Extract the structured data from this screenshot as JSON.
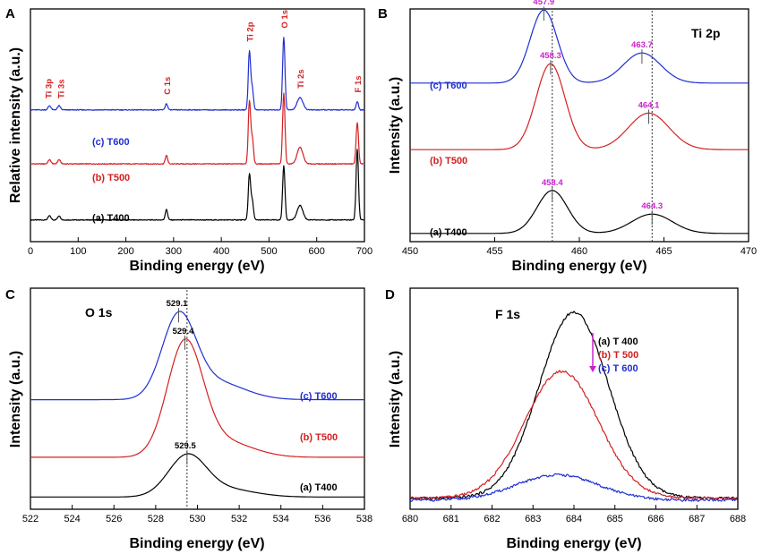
{
  "chart_data": [
    {
      "panel_label": "A",
      "type": "line",
      "title": "",
      "xlabel": "Binding energy (eV)",
      "ylabel": "Relative intensity (a.u.)",
      "xlim": [
        0,
        700
      ],
      "xticks": [
        "0",
        "100",
        "200",
        "300",
        "400",
        "500",
        "600",
        "700"
      ],
      "series": [
        {
          "name": "(a) T400",
          "color": "#000000",
          "baseline": 0.07,
          "peaks": [
            [
              40,
              0.02,
              3
            ],
            [
              60,
              0.02,
              3
            ],
            [
              285,
              0.05,
              2.5
            ],
            [
              459,
              0.22,
              2.5
            ],
            [
              465,
              0.09,
              2.5
            ],
            [
              531,
              0.26,
              2.5
            ],
            [
              565,
              0.07,
              6
            ],
            [
              685,
              0.34,
              2.5
            ]
          ]
        },
        {
          "name": "(b) T500",
          "color": "#d42020",
          "baseline": 0.34,
          "peaks": [
            [
              40,
              0.02,
              3
            ],
            [
              60,
              0.02,
              3
            ],
            [
              285,
              0.04,
              2.5
            ],
            [
              459,
              0.3,
              2.5
            ],
            [
              465,
              0.12,
              2.5
            ],
            [
              531,
              0.34,
              2.5
            ],
            [
              565,
              0.08,
              6
            ],
            [
              685,
              0.2,
              2.5
            ]
          ]
        },
        {
          "name": "(c) T600",
          "color": "#1f2fd0",
          "baseline": 0.6,
          "peaks": [
            [
              40,
              0.02,
              3
            ],
            [
              60,
              0.02,
              3
            ],
            [
              285,
              0.03,
              2.5
            ],
            [
              459,
              0.28,
              2.5
            ],
            [
              465,
              0.1,
              2.5
            ],
            [
              531,
              0.35,
              2.5
            ],
            [
              565,
              0.06,
              6
            ],
            [
              685,
              0.04,
              2.5
            ]
          ]
        }
      ],
      "annotations": [
        "Ti 3p",
        "Ti 3s",
        "C 1s",
        "Ti 2p",
        "O 1s",
        "Ti 2s",
        "F 1s"
      ],
      "annotation_positions_ev": [
        37,
        63,
        285,
        459,
        531,
        565,
        685
      ]
    },
    {
      "panel_label": "B",
      "type": "line",
      "title": "Ti 2p",
      "xlabel": "Binding energy (eV)",
      "ylabel": "Intensity (a.u.)",
      "xlim": [
        450,
        470
      ],
      "xticks": [
        "450",
        "455",
        "460",
        "465",
        "470"
      ],
      "reference_lines_ev": [
        458.4,
        464.3
      ],
      "series": [
        {
          "name": "(a) T400",
          "color": "#000000",
          "baseline": 0.03,
          "peaks": [
            [
              458.4,
              0.2,
              0.9
            ],
            [
              464.3,
              0.09,
              1.2
            ]
          ],
          "labels": [
            "458.4",
            "464.3"
          ]
        },
        {
          "name": "(b) T500",
          "color": "#d42020",
          "baseline": 0.42,
          "peaks": [
            [
              458.3,
              0.4,
              0.85
            ],
            [
              464.1,
              0.17,
              1.2
            ]
          ],
          "labels": [
            "458.3",
            "464.1"
          ]
        },
        {
          "name": "(c) T600",
          "color": "#1f2fd0",
          "baseline": 0.73,
          "peaks": [
            [
              457.9,
              0.34,
              0.8
            ],
            [
              463.7,
              0.14,
              1.1
            ]
          ],
          "labels": [
            "457.9",
            "463.7"
          ]
        }
      ]
    },
    {
      "panel_label": "C",
      "type": "line",
      "title": "O 1s",
      "xlabel": "Binding energy (eV)",
      "ylabel": "Intensity (a.u.)",
      "xlim": [
        522,
        538
      ],
      "xticks": [
        "522",
        "524",
        "526",
        "528",
        "530",
        "532",
        "534",
        "536",
        "538"
      ],
      "reference_lines_ev": [
        529.5
      ],
      "series": [
        {
          "name": "(a) T400",
          "color": "#000000",
          "baseline": 0.03,
          "peaks": [
            [
              529.5,
              0.2,
              0.9
            ],
            [
              531.3,
              0.04,
              1.4
            ]
          ],
          "labels": [
            "529.5"
          ]
        },
        {
          "name": "(b) T500",
          "color": "#d42020",
          "baseline": 0.23,
          "peaks": [
            [
              529.4,
              0.56,
              0.85
            ],
            [
              531.2,
              0.08,
              1.4
            ]
          ],
          "labels": [
            "529.4"
          ]
        },
        {
          "name": "(c) T600",
          "color": "#1f2fd0",
          "baseline": 0.52,
          "peaks": [
            [
              529.1,
              0.4,
              0.8
            ],
            [
              530.8,
              0.09,
              1.4
            ]
          ],
          "labels": [
            "529.1"
          ]
        }
      ]
    },
    {
      "panel_label": "D",
      "type": "line",
      "title": "F 1s",
      "xlabel": "Binding energy (eV)",
      "ylabel": "Intensity (a.u.)",
      "xlim": [
        680,
        688
      ],
      "xticks": [
        "680",
        "681",
        "682",
        "683",
        "684",
        "685",
        "686",
        "687",
        "688"
      ],
      "legend": [
        "(a) T 400",
        "(b) T 500",
        "(c) T 600"
      ],
      "series": [
        {
          "name": "(a) T 400",
          "color": "#000000",
          "baseline": 0.04,
          "peaks": [
            [
              684.0,
              0.88,
              0.85
            ]
          ]
        },
        {
          "name": "(b) T 500",
          "color": "#d42020",
          "baseline": 0.04,
          "peaks": [
            [
              683.7,
              0.6,
              0.9
            ]
          ]
        },
        {
          "name": "(c) T 600",
          "color": "#1f2fd0",
          "baseline": 0.03,
          "peaks": [
            [
              683.6,
              0.12,
              1.0
            ]
          ]
        }
      ]
    }
  ]
}
